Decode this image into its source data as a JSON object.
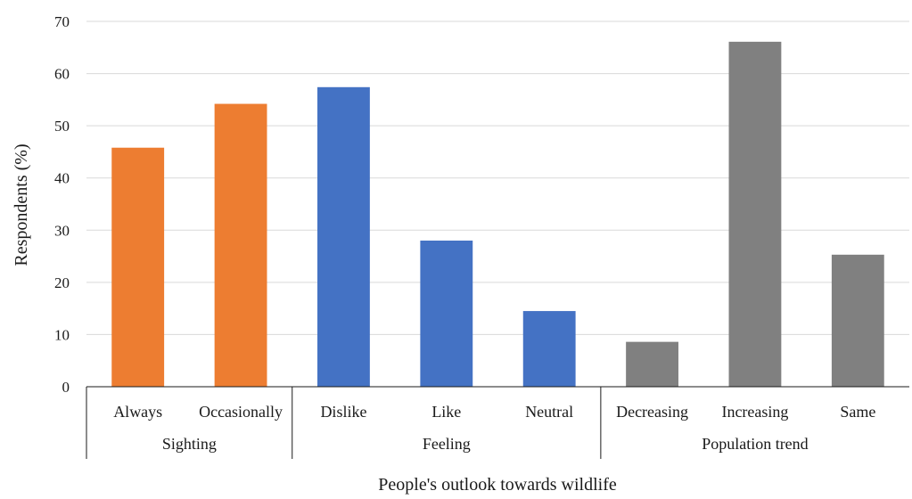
{
  "chart_data": {
    "type": "bar",
    "ylabel": "Respondents (%)",
    "xlabel": "People's outlook towards wildlife",
    "ylim": [
      0,
      70
    ],
    "ytick_step": 10,
    "grid": true,
    "legend": "none",
    "groups": [
      {
        "name": "Sighting",
        "color": "#ED7D31",
        "categories": [
          "Always",
          "Occasionally"
        ],
        "values": [
          45.8,
          54.2
        ]
      },
      {
        "name": "Feeling",
        "color": "#4472C4",
        "categories": [
          "Dislike",
          "Like",
          "Neutral"
        ],
        "values": [
          57.4,
          28.0,
          14.5
        ]
      },
      {
        "name": "Population trend",
        "color": "#808080",
        "categories": [
          "Decreasing",
          "Increasing",
          "Same"
        ],
        "values": [
          8.6,
          66.1,
          25.3
        ]
      }
    ]
  }
}
